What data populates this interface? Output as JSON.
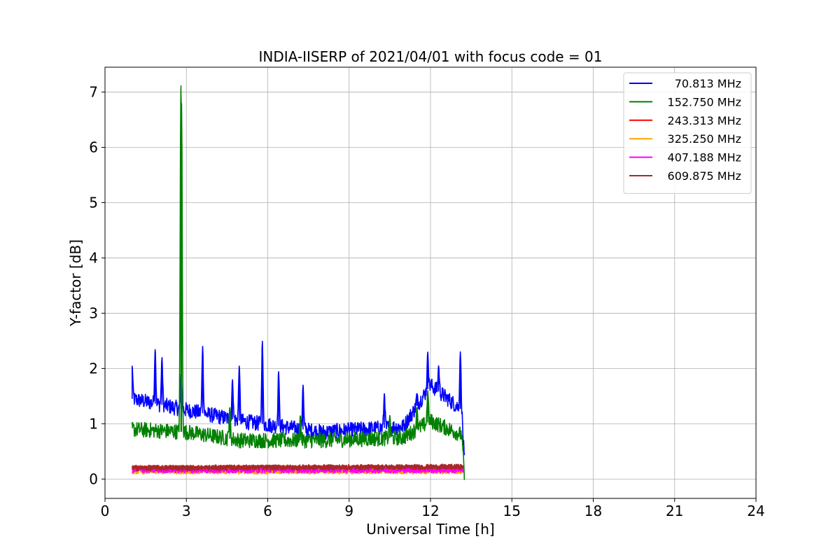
{
  "chart_data": {
    "type": "line",
    "title": "INDIA-IISERP of 2021/04/01 with focus code = 01",
    "xlabel": "Universal Time [h]",
    "ylabel": "Y-factor [dB]",
    "xlim": [
      0,
      24
    ],
    "ylim": [
      -0.35,
      7.45
    ],
    "xticks": [
      0,
      3,
      6,
      9,
      12,
      15,
      18,
      21,
      24
    ],
    "yticks": [
      0,
      1,
      2,
      3,
      4,
      5,
      6,
      7
    ],
    "grid": true,
    "legend_position": "upper-right",
    "series": [
      {
        "name": "70.813 MHz",
        "color": "#0000ff",
        "base": 0.95,
        "peaks": [
          [
            1.0,
            2.05
          ],
          [
            1.85,
            2.35
          ],
          [
            2.1,
            2.2
          ],
          [
            2.8,
            1.9
          ],
          [
            3.6,
            2.4
          ],
          [
            4.7,
            1.8
          ],
          [
            4.95,
            2.05
          ],
          [
            5.8,
            2.5
          ],
          [
            6.4,
            1.95
          ],
          [
            7.3,
            1.7
          ],
          [
            10.3,
            1.55
          ],
          [
            11.5,
            1.55
          ],
          [
            11.9,
            2.3
          ],
          [
            12.3,
            2.05
          ],
          [
            13.1,
            2.3
          ]
        ],
        "levels": [
          [
            1.0,
            1.45
          ],
          [
            3.0,
            1.25
          ],
          [
            5.0,
            1.05
          ],
          [
            8.0,
            0.85
          ],
          [
            11.0,
            0.95
          ],
          [
            12.0,
            1.7
          ],
          [
            13.15,
            1.25
          ],
          [
            13.25,
            0.3
          ]
        ]
      },
      {
        "name": "152.750 MHz",
        "color": "#008000",
        "base": 0.8,
        "peaks": [
          [
            2.8,
            7.12
          ],
          [
            2.82,
            6.8
          ],
          [
            4.6,
            1.3
          ],
          [
            7.2,
            1.15
          ],
          [
            10.5,
            1.15
          ],
          [
            11.5,
            1.3
          ],
          [
            11.9,
            1.6
          ]
        ],
        "levels": [
          [
            1.0,
            0.9
          ],
          [
            3.0,
            0.85
          ],
          [
            5.0,
            0.7
          ],
          [
            8.0,
            0.7
          ],
          [
            11.0,
            0.75
          ],
          [
            12.0,
            1.05
          ],
          [
            13.15,
            0.8
          ],
          [
            13.25,
            0.05
          ]
        ]
      },
      {
        "name": "243.313 MHz",
        "color": "#ff0000",
        "base": 0.2,
        "peaks": [],
        "levels": [
          [
            1.0,
            0.2
          ],
          [
            13.2,
            0.2
          ]
        ]
      },
      {
        "name": "325.250 MHz",
        "color": "#ffa500",
        "base": 0.14,
        "peaks": [],
        "levels": [
          [
            1.0,
            0.14
          ],
          [
            13.2,
            0.14
          ]
        ]
      },
      {
        "name": "407.188 MHz",
        "color": "#ff00ff",
        "base": 0.16,
        "peaks": [],
        "levels": [
          [
            1.0,
            0.16
          ],
          [
            13.2,
            0.16
          ]
        ]
      },
      {
        "name": "609.875 MHz",
        "color": "#a52a2a",
        "base": 0.2,
        "peaks": [],
        "levels": [
          [
            1.0,
            0.2
          ],
          [
            13.2,
            0.22
          ]
        ]
      }
    ]
  }
}
